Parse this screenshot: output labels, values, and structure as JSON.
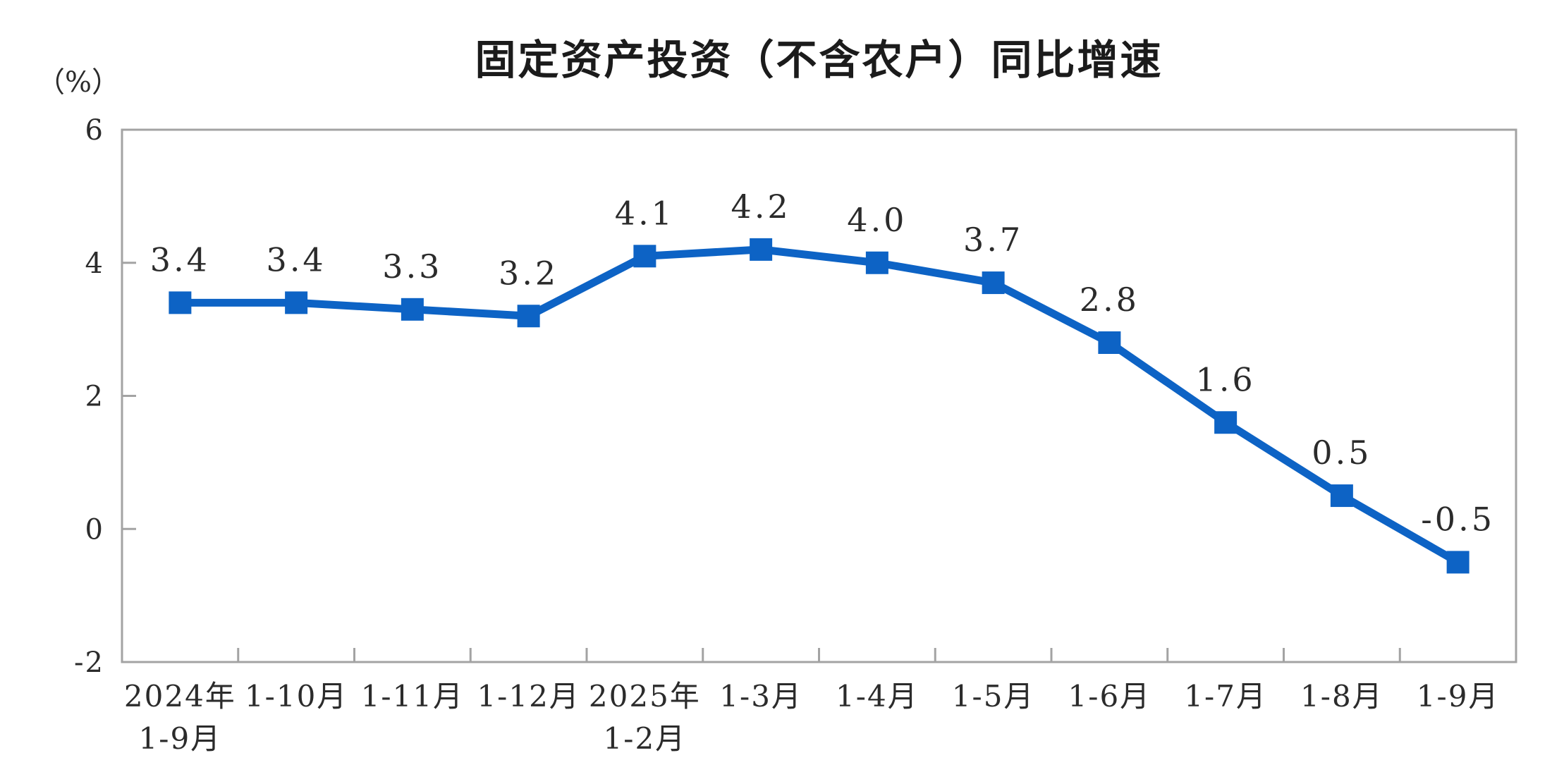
{
  "header": {
    "title": "固定资产投资（不含农户）同比增速",
    "unit_label": "（%）"
  },
  "chart_data": {
    "type": "line",
    "title": "固定资产投资（不含农户）同比增速",
    "ylabel": "（%）",
    "xlabel": "",
    "legend": "none",
    "grid": false,
    "marker": "square",
    "categories": [
      [
        "2024年",
        "1-9月"
      ],
      [
        "1-10月"
      ],
      [
        "1-11月"
      ],
      [
        "1-12月"
      ],
      [
        "2025年",
        "1-2月"
      ],
      [
        "1-3月"
      ],
      [
        "1-4月"
      ],
      [
        "1-5月"
      ],
      [
        "1-6月"
      ],
      [
        "1-7月"
      ],
      [
        "1-8月"
      ],
      [
        "1-9月"
      ]
    ],
    "values": [
      3.4,
      3.4,
      3.3,
      3.2,
      4.1,
      4.2,
      4.0,
      3.7,
      2.8,
      1.6,
      0.5,
      -0.5
    ],
    "data_labels": [
      "3.4",
      "3.4",
      "3.3",
      "3.2",
      "4.1",
      "4.2",
      "4.0",
      "3.7",
      "2.8",
      "1.6",
      "0.5",
      "-0.5"
    ],
    "y_ticks": [
      6,
      4,
      2,
      0,
      -2
    ],
    "ylim": [
      -2,
      6
    ],
    "colors": {
      "series": "#0d63c5",
      "axis": "#a3a3a3",
      "text": "#2b2b2b",
      "title": "#1b1b1b"
    }
  }
}
